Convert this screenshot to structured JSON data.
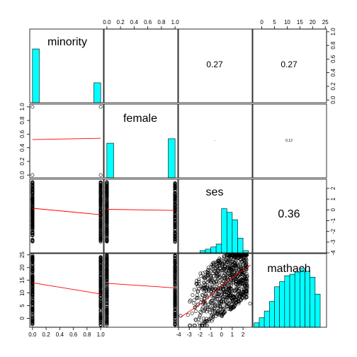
{
  "chart_data": {
    "type": "scatter-matrix",
    "variables": [
      "minority",
      "female",
      "ses",
      "mathach"
    ],
    "panels": {
      "cor_minority_female": "",
      "cor_minority_ses": "0.27",
      "cor_minority_mathach": "0.27",
      "cor_female_ses": "...",
      "cor_female_mathach": "0.12",
      "cor_ses_mathach": "0.36"
    },
    "axes": {
      "minority": {
        "ticks": [
          "0.0",
          "0.2",
          "0.4",
          "0.6",
          "0.8",
          "1.0"
        ],
        "range": [
          -0.04,
          1.04
        ]
      },
      "female": {
        "ticks": [
          "0.0",
          "0.2",
          "0.4",
          "0.6",
          "0.8",
          "1.0"
        ],
        "range": [
          -0.04,
          1.04
        ]
      },
      "ses": {
        "ticks": [
          "-4",
          "-3",
          "-2",
          "-1",
          "0",
          "1",
          "2"
        ],
        "range": [
          -4.0,
          2.85
        ]
      },
      "mathach": {
        "ticks": [
          "0",
          "5",
          "10",
          "15",
          "20",
          "25"
        ],
        "range": [
          -3.5,
          25.5
        ]
      }
    },
    "histograms": {
      "minority": {
        "breaks": [
          0,
          0.1,
          0.2,
          0.3,
          0.4,
          0.5,
          0.6,
          0.7,
          0.8,
          0.9,
          1.0
        ],
        "counts": [
          0.73,
          0,
          0,
          0,
          0,
          0,
          0,
          0,
          0,
          0.27
        ]
      },
      "female": {
        "breaks": [
          0,
          0.1,
          0.2,
          0.3,
          0.4,
          0.5,
          0.6,
          0.7,
          0.8,
          0.9,
          1.0
        ],
        "counts": [
          0.47,
          0,
          0,
          0,
          0,
          0,
          0,
          0,
          0,
          0.53
        ]
      },
      "ses": {
        "breaks": [
          -4,
          -3.5,
          -3,
          -2.5,
          -2,
          -1.5,
          -1,
          -0.5,
          0,
          0.5,
          1,
          1.5,
          2,
          2.5,
          3
        ],
        "counts": [
          0.0,
          0.0,
          0.0,
          0.0,
          0.03,
          0.05,
          0.08,
          0.12,
          0.6,
          0.55,
          0.45,
          0.2,
          0.03,
          0.0
        ]
      },
      "mathach": {
        "breaks": [
          -3,
          -1,
          1,
          3,
          5,
          7,
          9,
          11,
          13,
          15,
          17,
          19,
          21,
          23,
          25
        ],
        "counts": [
          0.06,
          0.13,
          0.22,
          0.35,
          0.55,
          0.62,
          0.7,
          0.72,
          0.75,
          0.8,
          0.76,
          0.68,
          0.45,
          0.0
        ]
      }
    },
    "fits": {
      "minority_female": [
        0.52,
        0.54
      ],
      "minority_ses": [
        0.15,
        -0.45
      ],
      "minority_mathach": [
        14.0,
        9.6
      ],
      "female_ses": [
        0.05,
        -0.05
      ],
      "female_mathach": [
        13.8,
        12.0
      ],
      "ses_mathach": [
        [
          -3.8,
          0.5
        ],
        [
          -2.0,
          5.5
        ],
        [
          -1.0,
          9.0
        ],
        [
          0.0,
          12.5
        ],
        [
          1.0,
          16.0
        ],
        [
          2.7,
          21.0
        ]
      ]
    }
  }
}
